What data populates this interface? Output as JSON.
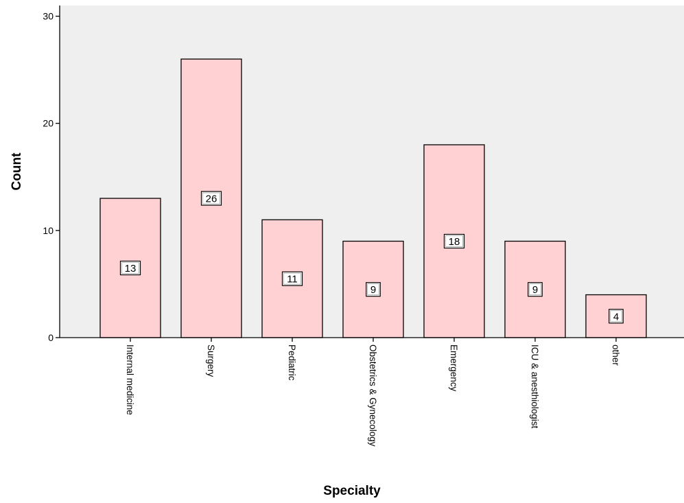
{
  "chart_data": {
    "type": "bar",
    "title": "",
    "xlabel": "Specialty",
    "ylabel": "Count",
    "categories": [
      "Internal medicine",
      "Surgery",
      "Pediatric",
      "Obstetrics & Gynecology",
      "Emergency",
      "ICU & anesthiologist",
      "other"
    ],
    "values": [
      13,
      26,
      11,
      9,
      18,
      9,
      4
    ],
    "ylim": [
      0,
      31
    ],
    "yticks": [
      0,
      10,
      20,
      30
    ],
    "grid": false,
    "legend": "none",
    "data_labels": true,
    "colors": {
      "bar_fill": "#ffd1d3",
      "bar_stroke": "#000000",
      "plot_background": "#efefef",
      "axis": "#000000",
      "label_box_fill": "#ffffff"
    }
  }
}
